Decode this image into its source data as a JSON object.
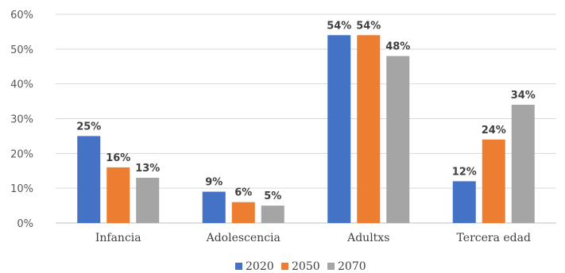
{
  "chart_data": {
    "type": "bar",
    "categories": [
      "Infancia",
      "Adolescencia",
      "Adultxs",
      "Tercera edad"
    ],
    "series": [
      {
        "name": "2020",
        "values": [
          25,
          9,
          54,
          12
        ],
        "labels": [
          "25%",
          "9%",
          "54%",
          "12%"
        ],
        "color": "#4472c4"
      },
      {
        "name": "2050",
        "values": [
          16,
          6,
          54,
          24
        ],
        "labels": [
          "16%",
          "6%",
          "54%",
          "24%"
        ],
        "color": "#ed7d31"
      },
      {
        "name": "2070",
        "values": [
          13,
          5,
          48,
          34
        ],
        "labels": [
          "13%",
          "5%",
          "48%",
          "34%"
        ],
        "color": "#a5a5a5"
      }
    ],
    "yticks": [
      "0%",
      "10%",
      "20%",
      "30%",
      "40%",
      "50%",
      "60%"
    ],
    "ylim": [
      0,
      60
    ],
    "grid": true,
    "legend": "bottom"
  }
}
